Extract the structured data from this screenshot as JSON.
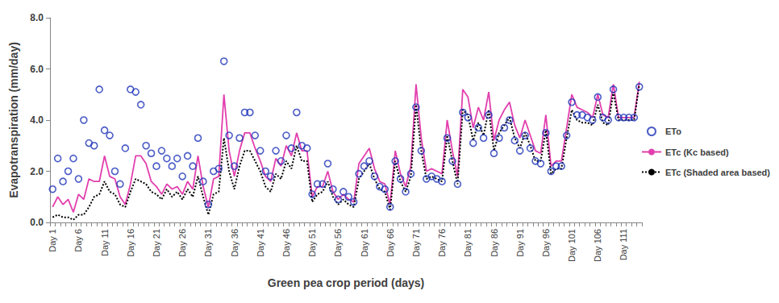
{
  "chart_data": {
    "type": "line",
    "x_label": "Green pea crop period (days)",
    "y_label": "Evapotranspiration (mm/day)",
    "categories": [
      "Day 1",
      null,
      null,
      null,
      null,
      "Day 6",
      null,
      null,
      null,
      null,
      "Day 11",
      null,
      null,
      null,
      null,
      "Day 16",
      null,
      null,
      null,
      null,
      "Day 21",
      null,
      null,
      null,
      null,
      "Day 26",
      null,
      null,
      null,
      null,
      "Day 31",
      null,
      null,
      null,
      null,
      "Day 36",
      null,
      null,
      null,
      null,
      "Day 41",
      null,
      null,
      null,
      null,
      "Day 46",
      null,
      null,
      null,
      null,
      "Day 51",
      null,
      null,
      null,
      null,
      "Day 56",
      null,
      null,
      null,
      null,
      "Day 61",
      null,
      null,
      null,
      null,
      "Day 66",
      null,
      null,
      null,
      null,
      "Day 71",
      null,
      null,
      null,
      null,
      "Day 76",
      null,
      null,
      null,
      null,
      "Day 81",
      null,
      null,
      null,
      null,
      "Day 86",
      null,
      null,
      null,
      null,
      "Day 91",
      null,
      null,
      null,
      null,
      "Day 96",
      null,
      null,
      null,
      null,
      "Day 101",
      null,
      null,
      null,
      null,
      "Day 106",
      null,
      null,
      null,
      null,
      "Day 111",
      null,
      null,
      null
    ],
    "ylim": [
      0,
      8
    ],
    "yticks": [
      {
        "value": 0,
        "label": "0.0"
      },
      {
        "value": 2,
        "label": "2.0"
      },
      {
        "value": 4,
        "label": "4.0"
      },
      {
        "value": 6,
        "label": "6.0"
      },
      {
        "value": 8,
        "label": "8.0"
      }
    ],
    "grid": false,
    "legend": "right",
    "series": [
      {
        "name": "ETo",
        "type": "scatter",
        "marker": "circle",
        "color": "#1f35b8",
        "values": [
          1.3,
          2.5,
          1.6,
          2.0,
          2.5,
          1.7,
          4.0,
          3.1,
          3.0,
          5.2,
          3.6,
          3.4,
          2.0,
          1.5,
          2.9,
          5.2,
          5.1,
          4.6,
          3.0,
          2.7,
          2.2,
          2.8,
          2.5,
          2.2,
          2.5,
          1.8,
          2.6,
          2.2,
          3.3,
          1.6,
          0.7,
          2.0,
          2.1,
          6.3,
          3.4,
          2.2,
          3.3,
          4.3,
          4.3,
          3.4,
          2.8,
          2.0,
          1.8,
          2.8,
          2.4,
          3.4,
          2.9,
          4.3,
          3.0,
          2.9,
          1.1,
          1.5,
          1.5,
          2.3,
          1.3,
          0.9,
          1.2,
          1.0,
          0.8,
          1.9,
          2.2,
          2.4,
          1.8,
          1.4,
          1.3,
          0.6,
          2.4,
          1.7,
          1.2,
          1.9,
          4.5,
          2.8,
          1.7,
          1.8,
          1.7,
          1.6,
          3.3,
          2.4,
          1.5,
          4.3,
          4.1,
          3.1,
          3.7,
          3.3,
          4.2,
          2.7,
          3.3,
          3.7,
          4.0,
          3.2,
          2.8,
          3.4,
          2.9,
          2.4,
          2.3,
          3.5,
          2.0,
          2.2,
          2.2,
          3.4,
          4.7,
          4.2,
          4.2,
          4.1,
          4.0,
          4.9,
          4.1,
          4.0,
          5.2,
          4.1,
          4.1,
          4.1,
          4.1,
          5.3
        ]
      },
      {
        "name": "ETc (Kc based)",
        "type": "line",
        "line_style": "solid",
        "color": "#e23fae",
        "values": [
          0.6,
          1.0,
          0.7,
          0.9,
          0.4,
          1.1,
          0.9,
          1.7,
          1.6,
          1.6,
          2.6,
          1.8,
          1.7,
          1.0,
          0.7,
          1.5,
          2.6,
          2.6,
          2.3,
          1.6,
          1.4,
          1.1,
          1.5,
          1.3,
          1.4,
          1.1,
          1.6,
          1.3,
          2.6,
          1.4,
          0.6,
          1.7,
          1.8,
          5.0,
          2.8,
          1.8,
          2.8,
          3.5,
          3.5,
          2.9,
          2.4,
          1.8,
          1.6,
          2.5,
          2.2,
          3.0,
          2.6,
          3.5,
          2.8,
          2.8,
          1.0,
          1.4,
          1.4,
          2.0,
          1.2,
          0.9,
          1.1,
          0.9,
          0.8,
          2.3,
          2.6,
          2.9,
          2.1,
          1.6,
          1.5,
          0.7,
          2.8,
          1.9,
          1.4,
          2.2,
          5.4,
          3.3,
          2.0,
          2.1,
          2.0,
          1.9,
          4.0,
          2.8,
          1.8,
          5.2,
          4.9,
          3.7,
          4.5,
          4.0,
          5.1,
          3.2,
          4.0,
          4.4,
          4.7,
          3.8,
          3.3,
          4.0,
          3.4,
          2.8,
          2.7,
          4.2,
          2.2,
          2.4,
          2.4,
          3.7,
          5.0,
          4.5,
          4.4,
          4.3,
          4.1,
          5.0,
          4.2,
          4.1,
          5.4,
          4.1,
          4.1,
          4.1,
          4.1,
          5.5
        ]
      },
      {
        "name": "ETc (Shaded area based)",
        "type": "line",
        "line_style": "dotted",
        "color": "#000000",
        "values": [
          0.2,
          0.3,
          0.2,
          0.2,
          0.1,
          0.3,
          0.3,
          0.6,
          1.0,
          1.1,
          1.6,
          1.2,
          1.1,
          0.7,
          0.6,
          1.2,
          1.7,
          1.6,
          1.5,
          1.2,
          1.1,
          0.9,
          1.3,
          1.0,
          1.2,
          0.9,
          1.3,
          1.0,
          1.8,
          1.0,
          0.3,
          1.1,
          1.2,
          3.3,
          2.0,
          1.3,
          2.2,
          2.8,
          2.8,
          2.4,
          2.0,
          1.4,
          1.2,
          1.9,
          1.7,
          2.4,
          2.1,
          3.0,
          2.4,
          2.4,
          0.8,
          1.1,
          1.2,
          1.6,
          1.0,
          0.7,
          0.9,
          0.7,
          0.6,
          1.7,
          2.0,
          2.3,
          1.7,
          1.3,
          1.2,
          0.5,
          2.4,
          1.6,
          1.2,
          1.8,
          4.6,
          2.8,
          1.7,
          1.8,
          1.7,
          1.6,
          3.4,
          2.4,
          1.5,
          4.4,
          4.2,
          3.2,
          3.9,
          3.4,
          4.4,
          2.8,
          3.5,
          3.8,
          4.1,
          3.3,
          2.9,
          3.5,
          3.0,
          2.4,
          2.4,
          3.6,
          1.9,
          2.1,
          2.1,
          3.3,
          4.4,
          4.0,
          3.9,
          3.9,
          3.8,
          4.6,
          3.9,
          3.8,
          5.1,
          4.0,
          4.0,
          4.0,
          4.0,
          5.4
        ]
      }
    ]
  }
}
